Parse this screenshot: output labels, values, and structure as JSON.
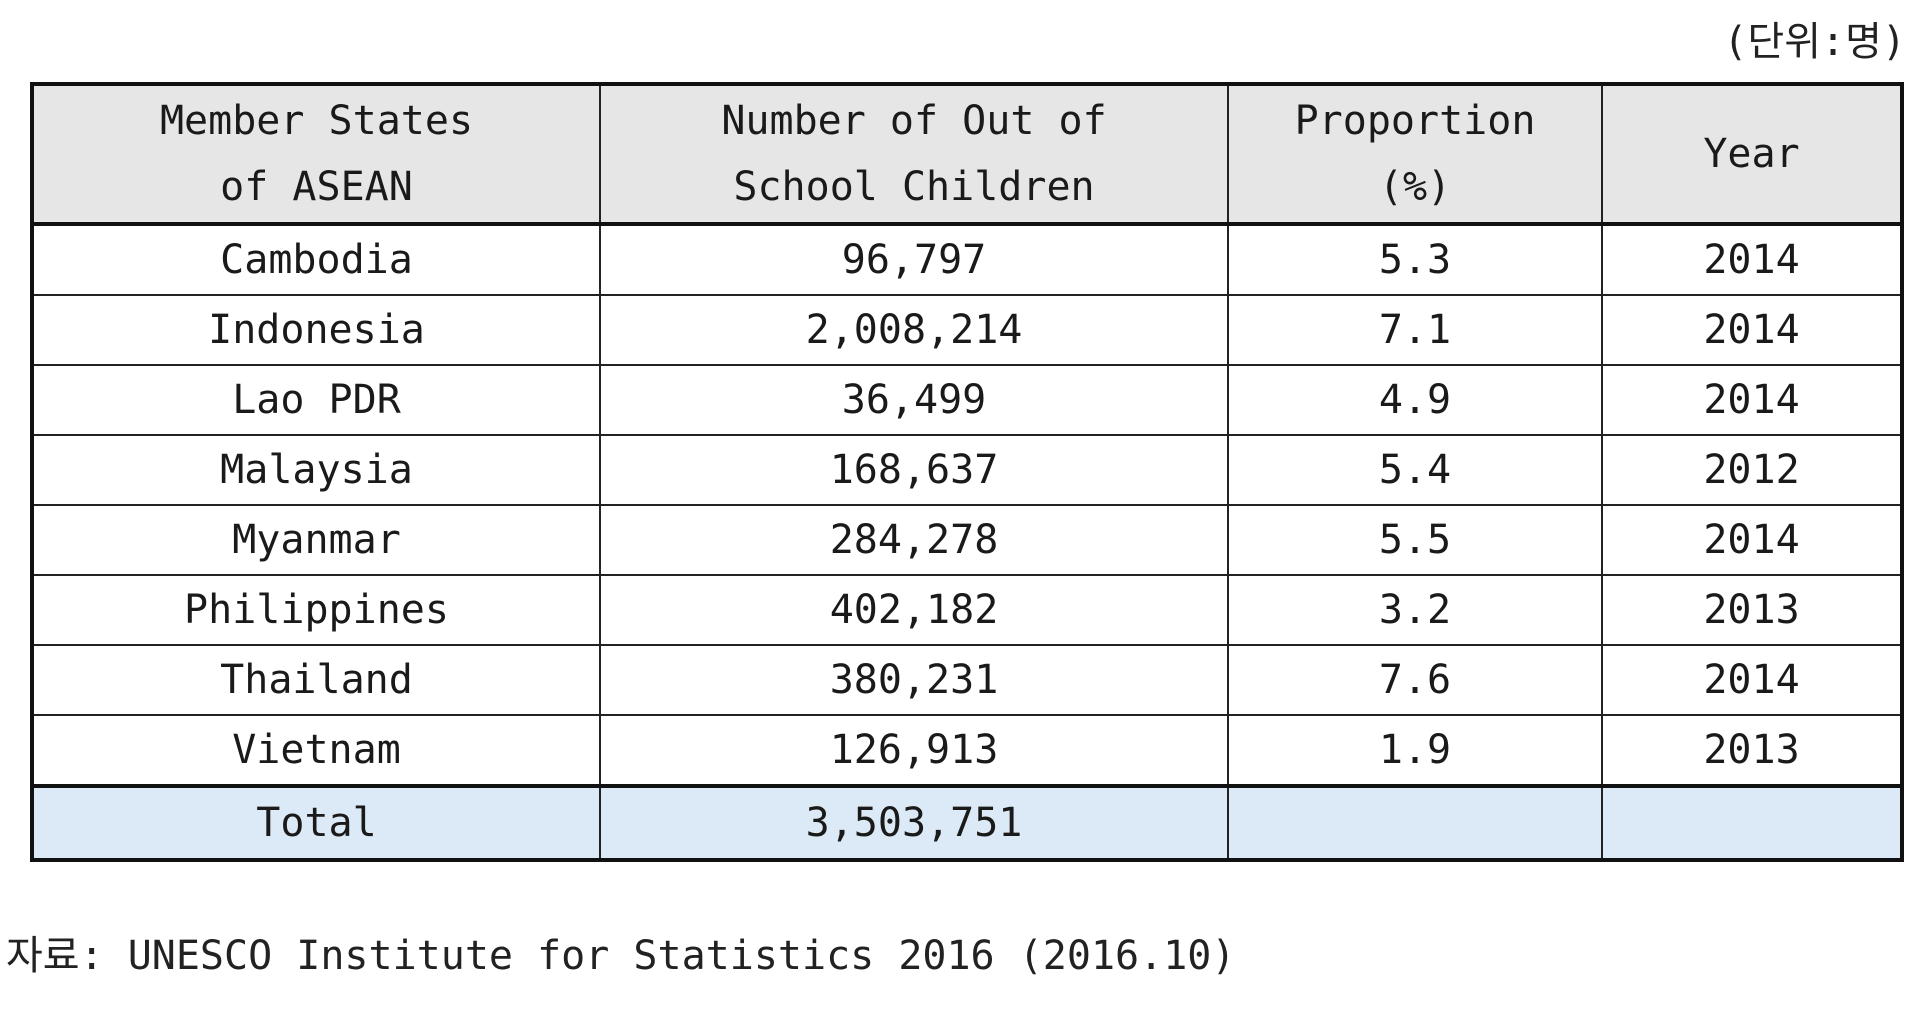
{
  "unit_label": "(단위:명)",
  "table": {
    "headers": [
      [
        "Member States",
        "of ASEAN"
      ],
      [
        "Number of  Out of",
        "School Children"
      ],
      [
        "Proportion",
        "(%)"
      ],
      [
        "Year"
      ]
    ],
    "rows": [
      {
        "state": "Cambodia",
        "number": "96,797",
        "proportion": "5.3",
        "year": "2014"
      },
      {
        "state": "Indonesia",
        "number": "2,008,214",
        "proportion": "7.1",
        "year": "2014"
      },
      {
        "state": "Lao PDR",
        "number": "36,499",
        "proportion": "4.9",
        "year": "2014"
      },
      {
        "state": "Malaysia",
        "number": "168,637",
        "proportion": "5.4",
        "year": "2012"
      },
      {
        "state": "Myanmar",
        "number": "284,278",
        "proportion": "5.5",
        "year": "2014"
      },
      {
        "state": "Philippines",
        "number": "402,182",
        "proportion": "3.2",
        "year": "2013"
      },
      {
        "state": "Thailand",
        "number": "380,231",
        "proportion": "7.6",
        "year": "2014"
      },
      {
        "state": "Vietnam",
        "number": "126,913",
        "proportion": "1.9",
        "year": "2013"
      }
    ],
    "total": {
      "label": "Total",
      "number": "3,503,751",
      "proportion": "",
      "year": ""
    }
  },
  "source": {
    "label": "자료:",
    "text": "UNESCO Institute for Statistics 2016 (2016.10)"
  }
}
